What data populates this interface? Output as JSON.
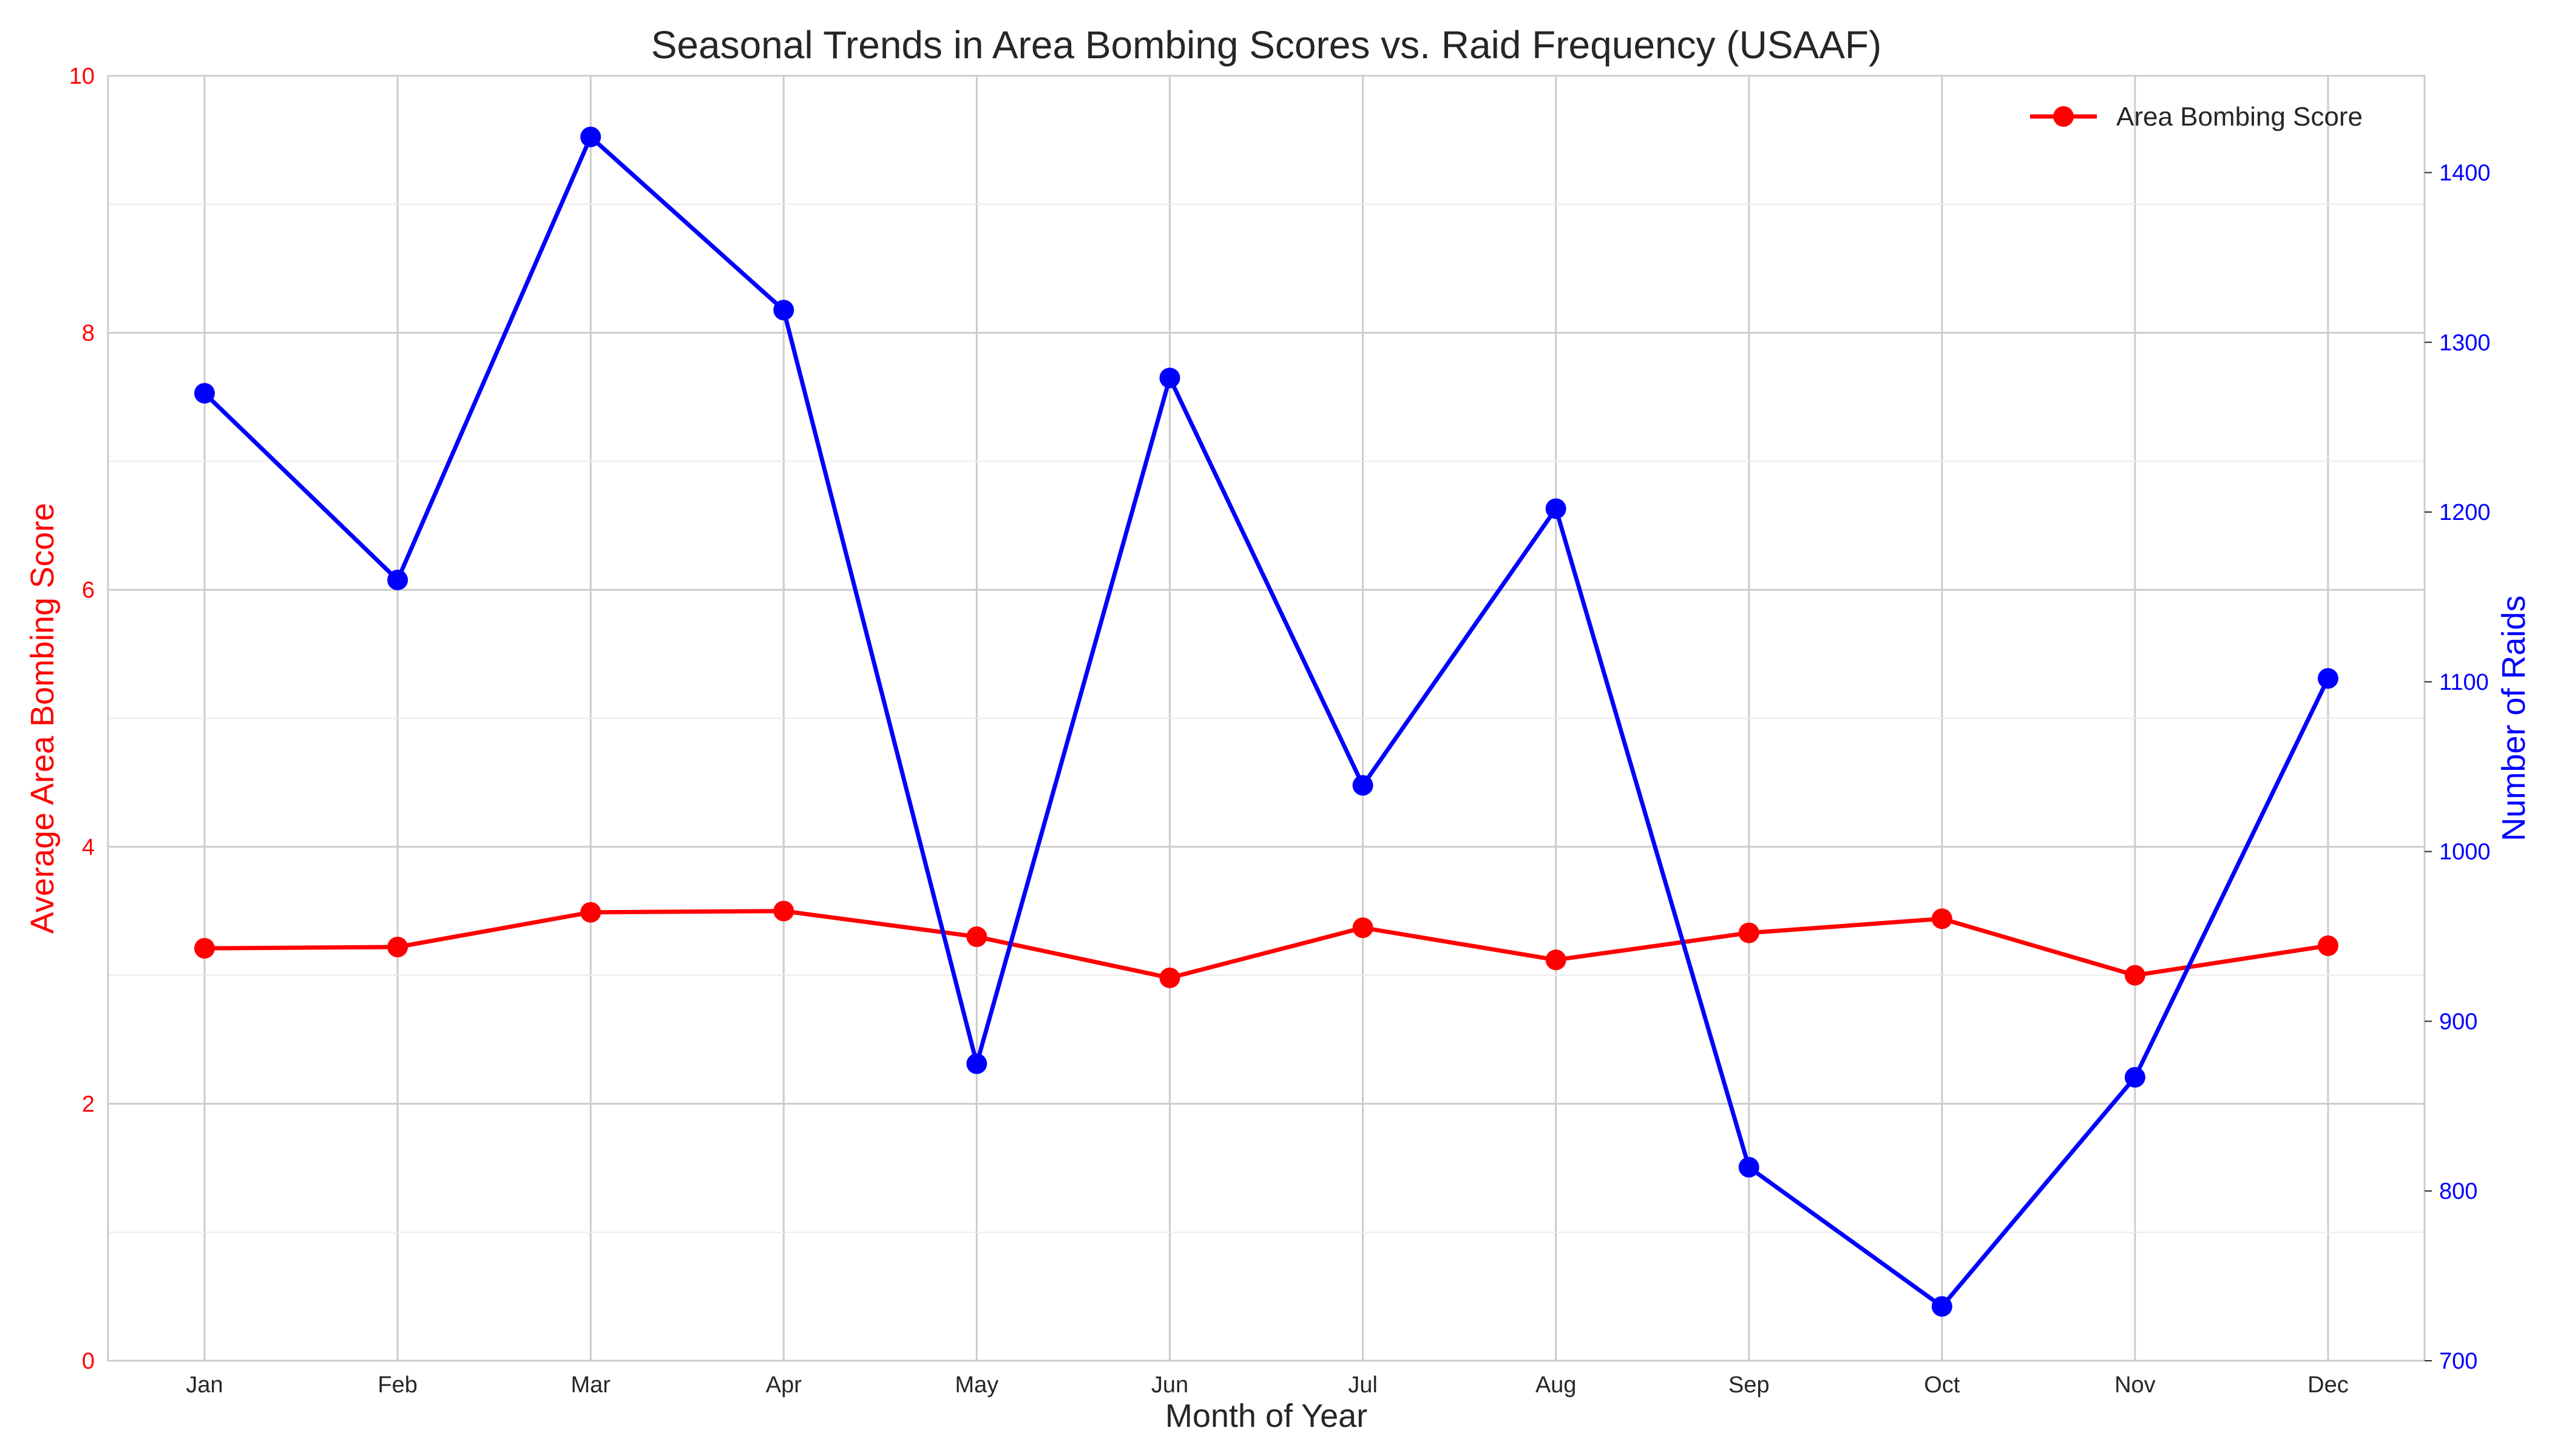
{
  "chart_data": {
    "type": "line",
    "title": "Seasonal Trends in Area Bombing Scores vs. Raid Frequency (USAAF)",
    "xlabel": "Month of Year",
    "ylabel_left": "Average Area Bombing Score",
    "ylabel_right": "Number of Raids",
    "categories": [
      "Jan",
      "Feb",
      "Mar",
      "Apr",
      "May",
      "Jun",
      "Jul",
      "Aug",
      "Sep",
      "Oct",
      "Nov",
      "Dec"
    ],
    "ylim_left": [
      0,
      10
    ],
    "yticks_left": [
      0,
      2,
      4,
      6,
      8,
      10
    ],
    "ylim_right": [
      700,
      1457
    ],
    "yticks_right": [
      700,
      800,
      900,
      1000,
      1100,
      1200,
      1300,
      1400
    ],
    "grid": true,
    "legend_placement": "top-right",
    "series": [
      {
        "name": "Area Bombing Score",
        "axis": "left",
        "color": "#ff0000",
        "values": [
          3.21,
          3.22,
          3.49,
          3.5,
          3.3,
          2.98,
          3.37,
          3.12,
          3.33,
          3.44,
          3.0,
          3.23
        ]
      },
      {
        "axis": "right",
        "color": "#0000ff",
        "values": [
          1270,
          1160,
          1421,
          1319,
          875,
          1279,
          1039,
          1202,
          814,
          732,
          867,
          1102
        ]
      }
    ],
    "left_axis_color": "#ff0000",
    "right_axis_color": "#0000ff"
  }
}
